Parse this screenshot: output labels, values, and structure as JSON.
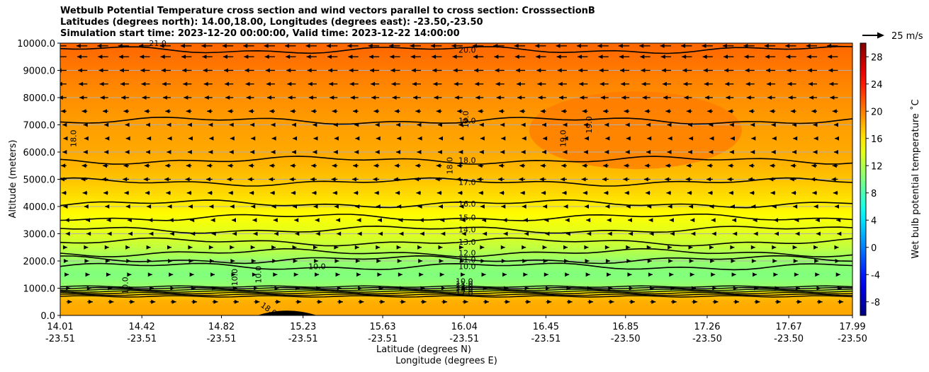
{
  "chart_data": {
    "type": "heatmap",
    "title_lines": [
      "Wetbulb Potential Temperature cross section and wind vectors parallel to cross section: CrosssectionB",
      "Latitudes (degrees north): 14.00,18.00, Longitudes (degrees east): -23.50,-23.50",
      "Simulation start time: 2023-12-20 00:00:00, Valid time: 2023-12-22 14:00:00"
    ],
    "ylabel": "Altitude (meters)",
    "xlabel_line1": "Latitude (degrees N)",
    "xlabel_line2": "Longitude (degrees E)",
    "xlim": [
      14.01,
      17.99
    ],
    "ylim": [
      0,
      10000
    ],
    "x_ticks": [
      {
        "lat": "14.01",
        "lon": "-23.51",
        "v": 14.01
      },
      {
        "lat": "14.42",
        "lon": "-23.51",
        "v": 14.42
      },
      {
        "lat": "14.82",
        "lon": "-23.51",
        "v": 14.82
      },
      {
        "lat": "15.23",
        "lon": "-23.51",
        "v": 15.23
      },
      {
        "lat": "15.63",
        "lon": "-23.51",
        "v": 15.63
      },
      {
        "lat": "16.04",
        "lon": "-23.51",
        "v": 16.04
      },
      {
        "lat": "16.45",
        "lon": "-23.51",
        "v": 16.45
      },
      {
        "lat": "16.85",
        "lon": "-23.50",
        "v": 16.85
      },
      {
        "lat": "17.26",
        "lon": "-23.50",
        "v": 17.26
      },
      {
        "lat": "17.67",
        "lon": "-23.50",
        "v": 17.67
      },
      {
        "lat": "17.99",
        "lon": "-23.50",
        "v": 17.99
      }
    ],
    "y_ticks": [
      {
        "label": "0.0",
        "v": 0
      },
      {
        "label": "1000.0",
        "v": 1000
      },
      {
        "label": "2000.0",
        "v": 2000
      },
      {
        "label": "3000.0",
        "v": 3000
      },
      {
        "label": "4000.0",
        "v": 4000
      },
      {
        "label": "5000.0",
        "v": 5000
      },
      {
        "label": "6000.0",
        "v": 6000
      },
      {
        "label": "7000.0",
        "v": 7000
      },
      {
        "label": "8000.0",
        "v": 8000
      },
      {
        "label": "9000.0",
        "v": 9000
      },
      {
        "label": "10000.0",
        "v": 10000
      }
    ],
    "colorbar": {
      "label": "Wet bulb potential temperature $^\\circ$C",
      "label_text": "Wet bulb potential temperature ˚C",
      "range": [
        -10,
        30
      ],
      "ticks": [
        "-8",
        "-4",
        "0",
        "4",
        "8",
        "12",
        "16",
        "20",
        "24",
        "28"
      ],
      "tick_values": [
        -8,
        -4,
        0,
        4,
        8,
        12,
        16,
        20,
        24,
        28
      ],
      "colormap": "jet"
    },
    "quiver_key": "25 m/s",
    "profile": [
      {
        "z": 0,
        "t": 18.5
      },
      {
        "z": 500,
        "t": 18.2
      },
      {
        "z": 800,
        "t": 17.0
      },
      {
        "z": 1000,
        "t": 11.0
      },
      {
        "z": 1500,
        "t": 10.0
      },
      {
        "z": 2000,
        "t": 10.8
      },
      {
        "z": 2500,
        "t": 12.5
      },
      {
        "z": 3000,
        "t": 13.8
      },
      {
        "z": 3500,
        "t": 14.6
      },
      {
        "z": 4000,
        "t": 15.6
      },
      {
        "z": 4500,
        "t": 16.5
      },
      {
        "z": 5000,
        "t": 17.3
      },
      {
        "z": 5500,
        "t": 17.9
      },
      {
        "z": 6000,
        "t": 18.4
      },
      {
        "z": 7000,
        "t": 18.8
      },
      {
        "z": 8000,
        "t": 19.4
      },
      {
        "z": 9000,
        "t": 20.2
      },
      {
        "z": 10000,
        "t": 21.0
      }
    ],
    "contours": [
      {
        "label": "10.0",
        "z": 1800
      },
      {
        "label": "11.0",
        "z": 2050
      },
      {
        "label": "12.0",
        "z": 2300
      },
      {
        "label": "13.0",
        "z": 2700
      },
      {
        "label": "14.0",
        "z": 3150
      },
      {
        "label": "15.0",
        "z": 3600
      },
      {
        "label": "16.0",
        "z": 4100
      },
      {
        "label": "17.0",
        "z": 4900
      },
      {
        "label": "18.0",
        "z": 5700
      },
      {
        "label": "19.0",
        "z": 7150
      },
      {
        "label": "20.0",
        "z": 9750
      }
    ],
    "extra_labels": [
      "21.0",
      "18.0",
      "18.0",
      "19.0",
      "19.0",
      "19.0",
      "10.0",
      "10.0",
      "10.0",
      "10.0",
      "18.0",
      "10.0",
      "11.0",
      "12.0",
      "13.0",
      "17.0"
    ],
    "wind_rows_m": [
      9900,
      9500,
      9000,
      8500,
      8000,
      7500,
      7000,
      6500,
      6000,
      5500,
      5000,
      4500,
      4000,
      3500,
      3000,
      2500,
      2000,
      1500,
      1000,
      500
    ],
    "wind_u": [
      -14,
      -13,
      -12,
      -11,
      -10,
      -7,
      -5,
      -4,
      -5,
      -7,
      -8,
      -6,
      -4,
      -2,
      -1,
      1,
      2,
      3,
      5,
      7
    ]
  }
}
